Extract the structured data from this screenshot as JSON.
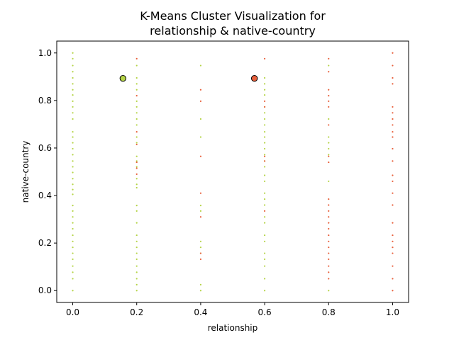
{
  "chart_data": {
    "type": "scatter",
    "title": [
      "K-Means Cluster Visualization for",
      "relationship & native-country"
    ],
    "xlabel": "relationship",
    "ylabel": "native-country",
    "xlim": [
      -0.05,
      1.05
    ],
    "ylim": [
      -0.05,
      1.05
    ],
    "xticks": [
      0.0,
      0.2,
      0.4,
      0.6,
      0.8,
      1.0
    ],
    "yticks": [
      0.0,
      0.2,
      0.4,
      0.6,
      0.8,
      1.0
    ],
    "xtick_labels": [
      "0.0",
      "0.2",
      "0.4",
      "0.6",
      "0.8",
      "1.0"
    ],
    "ytick_labels": [
      "0.0",
      "0.2",
      "0.4",
      "0.6",
      "0.8",
      "1.0"
    ],
    "grid": false,
    "colors": {
      "cluster_0": "#b5d447",
      "cluster_1": "#e8603c",
      "centroid_edge": "#000000"
    },
    "series": [
      {
        "points": [
          [
            0.0,
            1.0
          ],
          [
            0.0,
            0.976
          ],
          [
            0.0,
            0.947
          ],
          [
            0.0,
            0.921
          ],
          [
            0.0,
            0.895
          ],
          [
            0.0,
            0.87
          ],
          [
            0.0,
            0.845
          ],
          [
            0.0,
            0.823
          ],
          [
            0.0,
            0.797
          ],
          [
            0.0,
            0.773
          ],
          [
            0.0,
            0.748
          ],
          [
            0.0,
            0.722
          ],
          [
            0.0,
            0.668
          ],
          [
            0.0,
            0.646
          ],
          [
            0.0,
            0.622
          ],
          [
            0.0,
            0.597
          ],
          [
            0.0,
            0.572
          ],
          [
            0.0,
            0.545
          ],
          [
            0.0,
            0.521
          ],
          [
            0.0,
            0.497
          ],
          [
            0.0,
            0.471
          ],
          [
            0.0,
            0.447
          ],
          [
            0.0,
            0.425
          ],
          [
            0.0,
            0.405
          ],
          [
            0.0,
            0.358
          ],
          [
            0.0,
            0.335
          ],
          [
            0.0,
            0.31
          ],
          [
            0.0,
            0.285
          ],
          [
            0.0,
            0.26
          ],
          [
            0.0,
            0.233
          ],
          [
            0.0,
            0.207
          ],
          [
            0.0,
            0.182
          ],
          [
            0.0,
            0.157
          ],
          [
            0.0,
            0.132
          ],
          [
            0.0,
            0.103
          ],
          [
            0.0,
            0.077
          ],
          [
            0.0,
            0.05
          ],
          [
            0.0,
            0.0
          ],
          [
            0.2,
            0.947
          ],
          [
            0.2,
            0.895
          ],
          [
            0.2,
            0.87
          ],
          [
            0.2,
            0.845
          ],
          [
            0.2,
            0.797
          ],
          [
            0.2,
            0.773
          ],
          [
            0.2,
            0.748
          ],
          [
            0.2,
            0.722
          ],
          [
            0.2,
            0.697
          ],
          [
            0.2,
            0.646
          ],
          [
            0.2,
            0.622
          ],
          [
            0.2,
            0.565
          ],
          [
            0.2,
            0.545
          ],
          [
            0.2,
            0.521
          ],
          [
            0.2,
            0.471
          ],
          [
            0.2,
            0.447
          ],
          [
            0.2,
            0.433
          ],
          [
            0.2,
            0.358
          ],
          [
            0.2,
            0.335
          ],
          [
            0.2,
            0.285
          ],
          [
            0.2,
            0.233
          ],
          [
            0.2,
            0.207
          ],
          [
            0.2,
            0.182
          ],
          [
            0.2,
            0.157
          ],
          [
            0.2,
            0.132
          ],
          [
            0.2,
            0.103
          ],
          [
            0.2,
            0.077
          ],
          [
            0.2,
            0.05
          ],
          [
            0.2,
            0.025
          ],
          [
            0.2,
            0.0
          ],
          [
            0.4,
            0.947
          ],
          [
            0.4,
            0.722
          ],
          [
            0.4,
            0.646
          ],
          [
            0.4,
            0.358
          ],
          [
            0.4,
            0.335
          ],
          [
            0.4,
            0.207
          ],
          [
            0.4,
            0.182
          ],
          [
            0.4,
            0.157
          ],
          [
            0.4,
            0.025
          ],
          [
            0.4,
            0.0
          ],
          [
            0.6,
            0.895
          ],
          [
            0.6,
            0.87
          ],
          [
            0.6,
            0.845
          ],
          [
            0.6,
            0.823
          ],
          [
            0.6,
            0.773
          ],
          [
            0.6,
            0.748
          ],
          [
            0.6,
            0.722
          ],
          [
            0.6,
            0.697
          ],
          [
            0.6,
            0.668
          ],
          [
            0.6,
            0.646
          ],
          [
            0.6,
            0.622
          ],
          [
            0.6,
            0.597
          ],
          [
            0.6,
            0.572
          ],
          [
            0.6,
            0.545
          ],
          [
            0.6,
            0.521
          ],
          [
            0.6,
            0.485
          ],
          [
            0.6,
            0.46
          ],
          [
            0.6,
            0.41
          ],
          [
            0.6,
            0.385
          ],
          [
            0.6,
            0.36
          ],
          [
            0.6,
            0.31
          ],
          [
            0.6,
            0.285
          ],
          [
            0.6,
            0.233
          ],
          [
            0.6,
            0.207
          ],
          [
            0.6,
            0.157
          ],
          [
            0.6,
            0.132
          ],
          [
            0.6,
            0.103
          ],
          [
            0.6,
            0.05
          ],
          [
            0.6,
            0.0
          ],
          [
            0.8,
            0.947
          ],
          [
            0.8,
            0.722
          ],
          [
            0.8,
            0.646
          ],
          [
            0.8,
            0.622
          ],
          [
            0.8,
            0.597
          ],
          [
            0.8,
            0.572
          ],
          [
            0.8,
            0.46
          ],
          [
            0.8,
            0.0
          ]
        ]
      },
      {
        "points": [
          [
            0.2,
            0.976
          ],
          [
            0.2,
            0.82
          ],
          [
            0.2,
            0.668
          ],
          [
            0.2,
            0.615
          ],
          [
            0.2,
            0.54
          ],
          [
            0.2,
            0.515
          ],
          [
            0.2,
            0.49
          ],
          [
            0.4,
            0.845
          ],
          [
            0.4,
            0.797
          ],
          [
            0.4,
            0.565
          ],
          [
            0.4,
            0.41
          ],
          [
            0.4,
            0.31
          ],
          [
            0.4,
            0.157
          ],
          [
            0.4,
            0.132
          ],
          [
            0.6,
            0.976
          ],
          [
            0.6,
            0.797
          ],
          [
            0.6,
            0.773
          ],
          [
            0.6,
            0.565
          ],
          [
            0.6,
            0.545
          ],
          [
            0.6,
            0.335
          ],
          [
            0.8,
            0.976
          ],
          [
            0.8,
            0.921
          ],
          [
            0.8,
            0.845
          ],
          [
            0.8,
            0.82
          ],
          [
            0.8,
            0.797
          ],
          [
            0.8,
            0.773
          ],
          [
            0.8,
            0.697
          ],
          [
            0.8,
            0.565
          ],
          [
            0.8,
            0.54
          ],
          [
            0.8,
            0.385
          ],
          [
            0.8,
            0.36
          ],
          [
            0.8,
            0.335
          ],
          [
            0.8,
            0.31
          ],
          [
            0.8,
            0.285
          ],
          [
            0.8,
            0.26
          ],
          [
            0.8,
            0.233
          ],
          [
            0.8,
            0.207
          ],
          [
            0.8,
            0.182
          ],
          [
            0.8,
            0.157
          ],
          [
            0.8,
            0.132
          ],
          [
            0.8,
            0.103
          ],
          [
            0.8,
            0.077
          ],
          [
            0.8,
            0.05
          ],
          [
            1.0,
            1.0
          ],
          [
            1.0,
            0.947
          ],
          [
            1.0,
            0.895
          ],
          [
            1.0,
            0.87
          ],
          [
            1.0,
            0.773
          ],
          [
            1.0,
            0.748
          ],
          [
            1.0,
            0.722
          ],
          [
            1.0,
            0.697
          ],
          [
            1.0,
            0.668
          ],
          [
            1.0,
            0.646
          ],
          [
            1.0,
            0.597
          ],
          [
            1.0,
            0.545
          ],
          [
            1.0,
            0.485
          ],
          [
            1.0,
            0.46
          ],
          [
            1.0,
            0.41
          ],
          [
            1.0,
            0.36
          ],
          [
            1.0,
            0.285
          ],
          [
            1.0,
            0.233
          ],
          [
            1.0,
            0.207
          ],
          [
            1.0,
            0.182
          ],
          [
            1.0,
            0.157
          ],
          [
            1.0,
            0.103
          ],
          [
            1.0,
            0.05
          ],
          [
            1.0,
            0.0
          ]
        ]
      }
    ],
    "centroids": [
      {
        "x": 0.157,
        "y": 0.893,
        "cluster": 0
      },
      {
        "x": 0.568,
        "y": 0.893,
        "cluster": 1
      }
    ]
  }
}
